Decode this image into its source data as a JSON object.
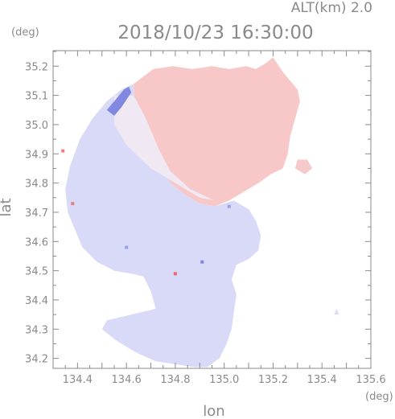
{
  "chart_data": {
    "type": "heatmap",
    "title": "2018/10/23 16:30:00",
    "subtitle": "ALT(km) 2.0",
    "xlabel": "lon",
    "ylabel": "lat",
    "x_unit": "(deg)",
    "y_unit": "(deg)",
    "xlim": [
      134.3,
      135.6
    ],
    "ylim": [
      34.166,
      35.253
    ],
    "x_ticks": [
      134.4,
      134.6,
      134.8,
      135.0,
      135.2,
      135.4,
      135.6
    ],
    "x_tick_labels": [
      "134.4",
      "134.6",
      "134.8",
      "135.0",
      "135.2",
      "135.4",
      "135.6"
    ],
    "y_ticks": [
      34.2,
      34.3,
      34.4,
      34.5,
      34.6,
      34.7,
      34.8,
      34.9,
      35.0,
      35.1,
      35.2
    ],
    "y_tick_labels": [
      "34.2",
      "34.3",
      "34.4",
      "34.5",
      "34.6",
      "34.7",
      "34.8",
      "34.9",
      "35.0",
      "35.1",
      "35.2"
    ],
    "grid": false,
    "colors": {
      "positive": "#f8c6c6",
      "negative": "#d4d6f8",
      "neutral": "#f4eef2",
      "strong_negative": "#7f86e0",
      "strong_positive": "#e07070"
    },
    "regions": [
      {
        "name": "positive",
        "color": "#f8c8c8",
        "polygon": [
          [
            134.63,
            35.14
          ],
          [
            134.71,
            35.19
          ],
          [
            134.79,
            35.2
          ],
          [
            134.87,
            35.19
          ],
          [
            134.95,
            35.2
          ],
          [
            135.02,
            35.19
          ],
          [
            135.09,
            35.2
          ],
          [
            135.13,
            35.19
          ],
          [
            135.17,
            35.21
          ],
          [
            135.2,
            35.23
          ],
          [
            135.24,
            35.18
          ],
          [
            135.27,
            35.15
          ],
          [
            135.3,
            35.12
          ],
          [
            135.31,
            35.08
          ],
          [
            135.29,
            35.02
          ],
          [
            135.27,
            34.96
          ],
          [
            135.26,
            34.9
          ],
          [
            135.24,
            34.85
          ],
          [
            135.19,
            34.83
          ],
          [
            135.14,
            34.8
          ],
          [
            135.08,
            34.77
          ],
          [
            135.02,
            34.74
          ],
          [
            134.96,
            34.72
          ],
          [
            134.9,
            34.73
          ],
          [
            134.84,
            34.76
          ],
          [
            134.78,
            34.8
          ],
          [
            134.74,
            34.86
          ],
          [
            134.7,
            34.94
          ],
          [
            134.66,
            35.02
          ],
          [
            134.63,
            35.08
          ]
        ]
      },
      {
        "name": "negative",
        "color": "#d8daf8",
        "polygon": [
          [
            134.63,
            35.14
          ],
          [
            134.58,
            35.12
          ],
          [
            134.52,
            35.08
          ],
          [
            134.46,
            35.02
          ],
          [
            134.41,
            34.95
          ],
          [
            134.37,
            34.86
          ],
          [
            134.35,
            34.78
          ],
          [
            134.36,
            34.7
          ],
          [
            134.39,
            34.64
          ],
          [
            134.42,
            34.58
          ],
          [
            134.48,
            34.53
          ],
          [
            134.55,
            34.5
          ],
          [
            134.62,
            34.49
          ],
          [
            134.67,
            34.48
          ],
          [
            134.7,
            34.43
          ],
          [
            134.72,
            34.37
          ],
          [
            134.62,
            34.35
          ],
          [
            134.52,
            34.33
          ],
          [
            134.5,
            34.3
          ],
          [
            134.56,
            34.26
          ],
          [
            134.64,
            34.22
          ],
          [
            134.72,
            34.19
          ],
          [
            134.8,
            34.18
          ],
          [
            134.88,
            34.17
          ],
          [
            134.93,
            34.17
          ],
          [
            134.98,
            34.2
          ],
          [
            135.01,
            34.25
          ],
          [
            135.03,
            34.3
          ],
          [
            135.04,
            34.36
          ],
          [
            135.05,
            34.42
          ],
          [
            135.03,
            34.47
          ],
          [
            135.05,
            34.52
          ],
          [
            135.1,
            34.54
          ],
          [
            135.14,
            34.57
          ],
          [
            135.15,
            34.62
          ],
          [
            135.13,
            34.67
          ],
          [
            135.1,
            34.71
          ],
          [
            135.04,
            34.74
          ],
          [
            134.96,
            34.72
          ],
          [
            134.9,
            34.73
          ],
          [
            134.84,
            34.76
          ],
          [
            134.78,
            34.8
          ],
          [
            134.74,
            34.86
          ],
          [
            134.7,
            34.94
          ],
          [
            134.66,
            35.02
          ],
          [
            134.63,
            35.08
          ]
        ]
      },
      {
        "name": "blend",
        "color": "#f0e8f2",
        "polygon": [
          [
            134.55,
            35.1
          ],
          [
            134.63,
            35.1
          ],
          [
            134.68,
            35.02
          ],
          [
            134.73,
            34.92
          ],
          [
            134.78,
            34.84
          ],
          [
            134.86,
            34.78
          ],
          [
            134.96,
            34.74
          ],
          [
            134.9,
            34.75
          ],
          [
            134.8,
            34.8
          ],
          [
            134.7,
            34.85
          ],
          [
            134.6,
            34.93
          ],
          [
            134.55,
            35.0
          ]
        ]
      },
      {
        "name": "strong_negative_band",
        "color": "#8088e0",
        "polygon": [
          [
            134.52,
            35.05
          ],
          [
            134.55,
            35.08
          ],
          [
            134.59,
            35.12
          ],
          [
            134.61,
            35.13
          ],
          [
            134.62,
            35.11
          ],
          [
            134.58,
            35.06
          ],
          [
            134.55,
            35.03
          ]
        ]
      },
      {
        "name": "patch",
        "color": "#f6caca",
        "polygon": [
          [
            135.3,
            34.88
          ],
          [
            135.34,
            34.88
          ],
          [
            135.36,
            34.85
          ],
          [
            135.33,
            34.83
          ],
          [
            135.29,
            34.85
          ]
        ]
      },
      {
        "name": "patch",
        "color": "#dadcf8",
        "polygon": [
          [
            135.45,
            34.35
          ],
          [
            135.46,
            34.37
          ],
          [
            135.47,
            34.35
          ]
        ]
      }
    ],
    "speckles": [
      {
        "x": 134.34,
        "y": 34.91,
        "color": "#e88080"
      },
      {
        "x": 134.38,
        "y": 34.73,
        "color": "#e88080"
      },
      {
        "x": 134.8,
        "y": 34.49,
        "color": "#e07070"
      },
      {
        "x": 134.91,
        "y": 34.53,
        "color": "#7f86e0"
      },
      {
        "x": 134.6,
        "y": 34.58,
        "color": "#9aa0e8"
      },
      {
        "x": 135.02,
        "y": 34.72,
        "color": "#9aa0e8"
      }
    ]
  }
}
